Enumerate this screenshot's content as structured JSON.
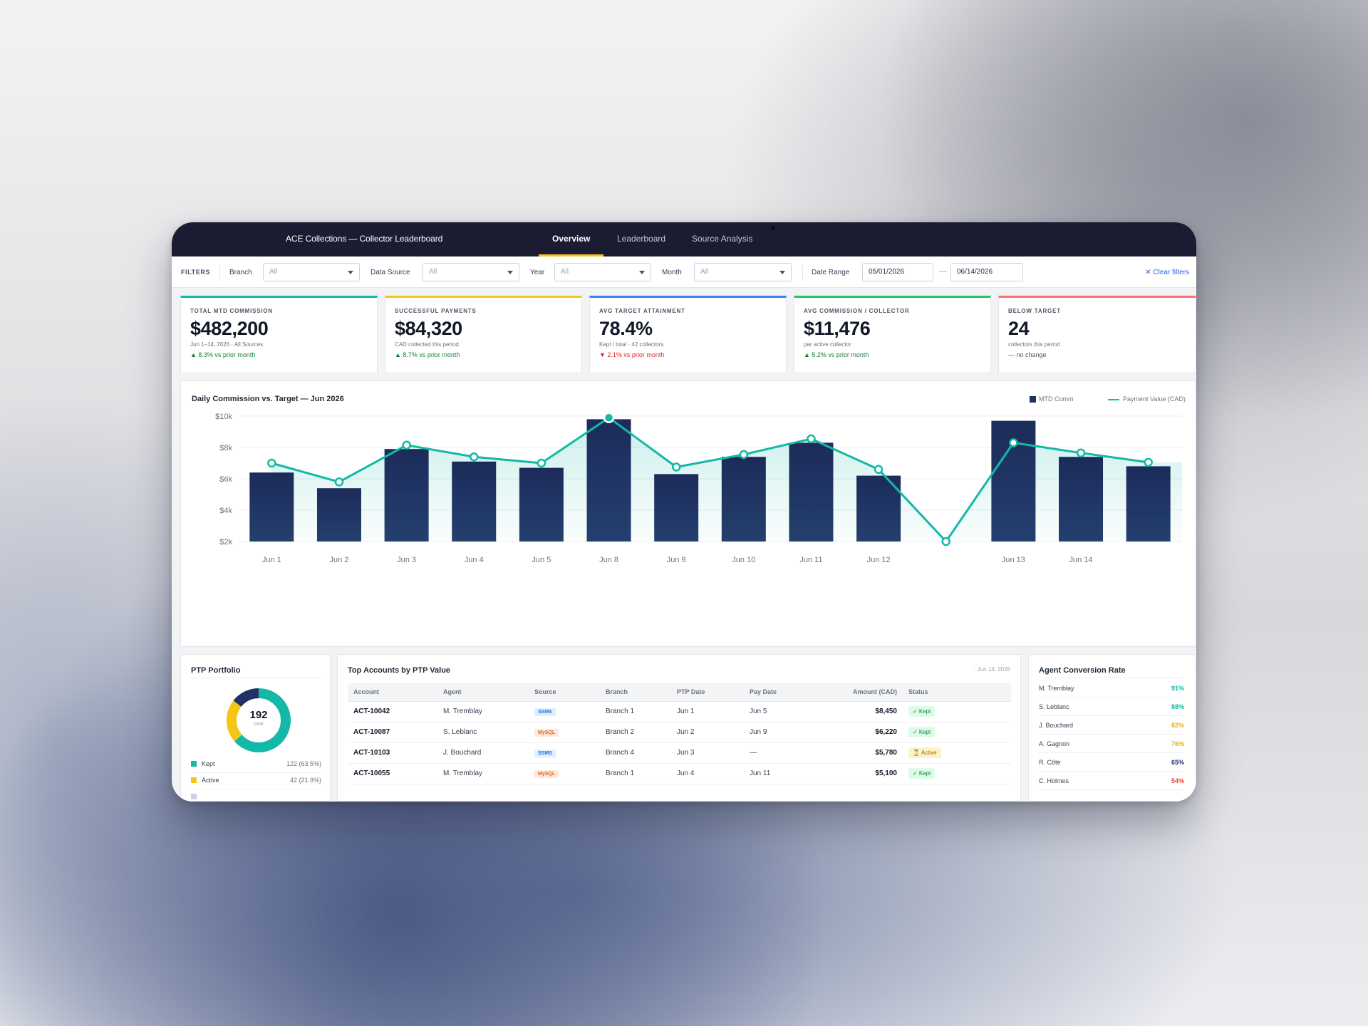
{
  "app": {
    "title": "ACE Collections — Collector Leaderboard",
    "tabs": [
      {
        "label": "Overview",
        "active": true
      },
      {
        "label": "Leaderboard",
        "active": false
      },
      {
        "label": "Source Analysis",
        "active": false
      }
    ],
    "accent": "#f5c518",
    "header_bg": "#1b1c32"
  },
  "filters": {
    "caption": "FILTERS",
    "branch": {
      "label": "Branch",
      "value": "All"
    },
    "data_source": {
      "label": "Data Source",
      "value": "All"
    },
    "year": {
      "label": "Year",
      "value": "All"
    },
    "month": {
      "label": "Month",
      "value": "All"
    },
    "date_range": {
      "label": "Date Range",
      "from": "05/01/2026",
      "separator": "—",
      "to": "06/14/2026"
    },
    "clear_icon": "close-icon",
    "clear_label": "Clear filters"
  },
  "kpis": [
    {
      "title": "Total MTD Commission",
      "value": "$482,200",
      "sub": "Jun 1–14, 2026 · All Sources",
      "delta": "▲ 8.3% vs prior month",
      "trend": "up",
      "color": "#14b8a6"
    },
    {
      "title": "Successful Payments",
      "value": "$84,320",
      "sub": "CAD collected this period",
      "delta": "▲ 8.7% vs prior month",
      "trend": "up",
      "color": "#f5c518"
    },
    {
      "title": "Avg Target Attainment",
      "value": "78.4%",
      "sub": "Kept / total · 42 collectors",
      "delta": "▼ 2.1% vs prior month",
      "trend": "down",
      "color": "#3b82f6"
    },
    {
      "title": "Avg Commission / Collector",
      "value": "$11,476",
      "sub": "per active collector",
      "delta": "▲ 5.2% vs prior month",
      "trend": "up",
      "color": "#22c55e"
    },
    {
      "title": "Below Target",
      "value": "24",
      "sub": "collectors this period",
      "delta": "— no change",
      "trend": "flat",
      "color": "#f87171"
    }
  ],
  "chart_data": {
    "type": "bar",
    "title": "Daily Commission vs. Target — Jun 2026",
    "categories": [
      "Jun 1",
      "Jun 2",
      "Jun 3",
      "Jun 4",
      "Jun 5",
      "Jun 8",
      "Jun 9",
      "Jun 10",
      "Jun 11",
      "Jun 12",
      "",
      "Jun 13",
      "Jun 14",
      ""
    ],
    "series": [
      {
        "name": "MTD Comm",
        "type": "bar",
        "color": "#1f3264",
        "values": [
          6400,
          5400,
          7900,
          7100,
          6700,
          9800,
          6300,
          7400,
          8300,
          6200,
          null,
          9700,
          7400,
          6800
        ]
      },
      {
        "name": "Payment Value (CAD)",
        "type": "line",
        "color": "#14b8a6",
        "values": [
          7000,
          5800,
          8150,
          7400,
          7000,
          9900,
          6750,
          7550,
          8550,
          6600,
          2000,
          8300,
          7650,
          7050
        ]
      }
    ],
    "ylim": [
      2000,
      10000
    ],
    "yticks": [
      "$10k",
      "$8k",
      "$6k",
      "$4k",
      "$2k"
    ],
    "legend_position": "top-right",
    "grid": true
  },
  "ptp": {
    "title": "PTP Portfolio",
    "total": "192",
    "total_label": "total",
    "segments": [
      {
        "name": "Kept",
        "value": 122,
        "label": "122 (63.5%)",
        "color": "#14b8a6"
      },
      {
        "name": "Active",
        "value": 42,
        "label": "42 (21.9%)",
        "color": "#f5c518"
      },
      {
        "name": "",
        "value": 28,
        "label": "",
        "color": "#1f3264"
      }
    ]
  },
  "accounts": {
    "title": "Top Accounts by PTP Value",
    "as_of": "· Jun 14, 2026",
    "columns": [
      "Account",
      "Agent",
      "Source",
      "Branch",
      "PTP Date",
      "Pay Date",
      "Amount (CAD)",
      "Status"
    ],
    "rows": [
      {
        "account": "ACT-10042",
        "agent": "M. Tremblay",
        "source": "SSMS",
        "branch": "Branch 1",
        "ptp_date": "Jun 1",
        "pay_date": "Jun 5",
        "amount": "$8,450",
        "status": "✓ Kept"
      },
      {
        "account": "ACT-10087",
        "agent": "S. Leblanc",
        "source": "MySQL",
        "branch": "Branch 2",
        "ptp_date": "Jun 2",
        "pay_date": "Jun 9",
        "amount": "$6,220",
        "status": "✓ Kept"
      },
      {
        "account": "ACT-10103",
        "agent": "J. Bouchard",
        "source": "SSMS",
        "branch": "Branch 4",
        "ptp_date": "Jun 3",
        "pay_date": "—",
        "amount": "$5,780",
        "status": "⏳ Active"
      },
      {
        "account": "ACT-10055",
        "agent": "M. Tremblay",
        "source": "MySQL",
        "branch": "Branch 1",
        "ptp_date": "Jun 4",
        "pay_date": "Jun 11",
        "amount": "$5,100",
        "status": "✓ Kept"
      }
    ]
  },
  "conversion": {
    "title": "Agent Conversion Rate",
    "rows": [
      {
        "name": "M. Tremblay",
        "rate": "91%",
        "color": "#14b8a6"
      },
      {
        "name": "S. Leblanc",
        "rate": "88%",
        "color": "#14b8a6"
      },
      {
        "name": "J. Bouchard",
        "rate": "82%",
        "color": "#eab308"
      },
      {
        "name": "A. Gagnon",
        "rate": "76%",
        "color": "#eab308"
      },
      {
        "name": "R. Côté",
        "rate": "65%",
        "color": "#1f3264"
      },
      {
        "name": "C. Holmes",
        "rate": "54%",
        "color": "#ef4444"
      }
    ]
  }
}
